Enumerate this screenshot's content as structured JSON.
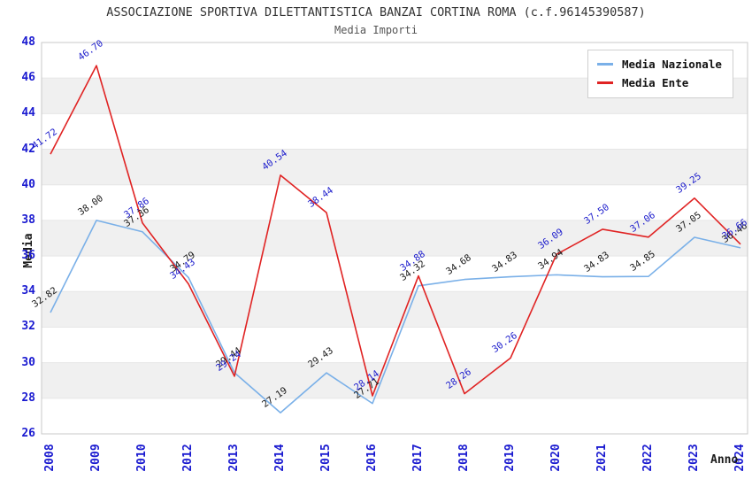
{
  "header": {
    "title": "ASSOCIAZIONE SPORTIVA DILETTANTISTICA BANZAI CORTINA ROMA (c.f.96145390587)",
    "subtitle": "Media Importi"
  },
  "chart_data": {
    "type": "line",
    "title": "ASSOCIAZIONE SPORTIVA DILETTANTISTICA BANZAI CORTINA ROMA (c.f.96145390587)",
    "subtitle": "Media Importi",
    "xlabel": "Anno",
    "ylabel": "Media",
    "categories": [
      "2008",
      "2009",
      "2010",
      "2012",
      "2013",
      "2014",
      "2015",
      "2016",
      "2017",
      "2018",
      "2019",
      "2020",
      "2021",
      "2022",
      "2023",
      "2024"
    ],
    "series": [
      {
        "name": "Media Nazionale",
        "color": "#7ab0e8",
        "label_color": "#1a1a1a",
        "values": [
          32.82,
          38.0,
          37.36,
          34.79,
          29.44,
          27.19,
          29.43,
          27.71,
          34.32,
          34.68,
          34.83,
          34.94,
          34.83,
          34.85,
          37.05,
          36.46
        ]
      },
      {
        "name": "Media Ente",
        "color": "#e02323",
        "label_color": "#1c1ccc",
        "values": [
          41.72,
          46.7,
          37.86,
          34.43,
          29.24,
          40.54,
          38.44,
          28.14,
          34.88,
          28.26,
          30.26,
          36.09,
          37.5,
          37.06,
          39.25,
          36.66
        ]
      }
    ],
    "ylim": [
      26,
      48
    ],
    "ytick_step": 2,
    "grid": "horizontal-bands",
    "band_colors": [
      "#ffffff",
      "#f0f0f0"
    ],
    "gridline_color": "#e6e6e6",
    "border_color": "#c8c8c8",
    "tick_label_color": "#1a1ad0",
    "legend_position": "top-right"
  }
}
